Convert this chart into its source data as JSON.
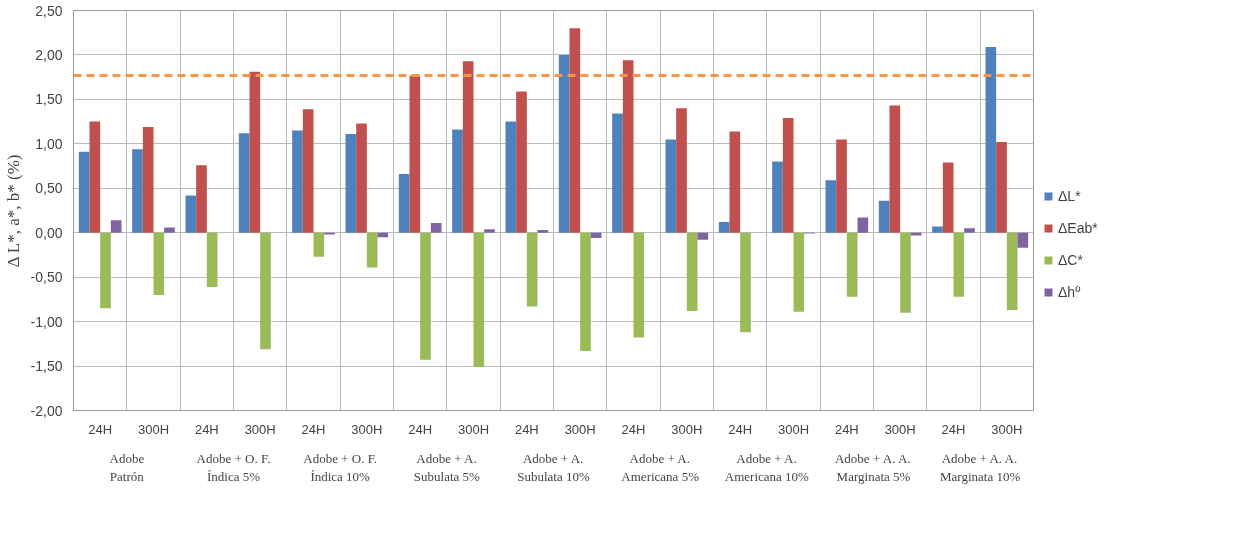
{
  "chart_data": {
    "type": "bar",
    "ylabel": "Δ L*, a*, b* (%)",
    "categories": [
      "24H",
      "300H",
      "24H",
      "300H",
      "24H",
      "300H",
      "24H",
      "300H",
      "24H",
      "300H",
      "24H",
      "300H",
      "24H",
      "300H",
      "24H",
      "300H",
      "24H",
      "300H"
    ],
    "annotations": [
      "Adobe\nPatrón",
      "Adobe + O. F.\nÍndica 5%",
      "Adobe + O. F.\nÍndica 10%",
      "Adobe + A.\nSubulata 5%",
      "Adobe + A.\nSubulata 10%",
      "Adobe + A.\nAmericana 5%",
      "Adobe + A.\nAmericana 10%",
      "Adobe + A. A.\nMarginata 5%",
      "Adobe + A. A.\nMarginata 10%"
    ],
    "series": [
      {
        "name": "ΔL*",
        "color": "#4f81bd",
        "values": [
          0.91,
          0.94,
          0.42,
          1.12,
          1.15,
          1.11,
          0.66,
          1.16,
          1.25,
          2.0,
          1.34,
          1.05,
          0.12,
          0.8,
          0.59,
          0.36,
          0.07,
          2.09
        ]
      },
      {
        "name": "ΔEab*",
        "color": "#c0504d",
        "values": [
          1.25,
          1.19,
          0.76,
          1.81,
          1.39,
          1.23,
          1.77,
          1.93,
          1.59,
          2.3,
          1.94,
          1.4,
          1.14,
          1.29,
          1.05,
          1.43,
          0.79,
          1.02
        ]
      },
      {
        "name": "ΔC*",
        "color": "#9bbb59",
        "values": [
          -0.85,
          -0.7,
          -0.61,
          -1.31,
          -0.27,
          -0.39,
          -1.43,
          -1.51,
          -0.83,
          -1.33,
          -1.18,
          -0.88,
          -1.12,
          -0.89,
          -0.72,
          -0.9,
          -0.72,
          -0.87
        ]
      },
      {
        "name": "Δhº",
        "color": "#8064a2",
        "values": [
          0.14,
          0.06,
          0,
          0,
          -0.02,
          -0.05,
          0.11,
          0.04,
          0.03,
          -0.06,
          0,
          -0.08,
          0,
          -0.01,
          0.17,
          -0.03,
          0.05,
          -0.17
        ]
      }
    ],
    "ylim": [
      -2,
      2.5
    ],
    "yticks": [
      {
        "value": -2,
        "label": "-2,00"
      },
      {
        "value": -1.5,
        "label": "-1,50"
      },
      {
        "value": -1,
        "label": "-1,00"
      },
      {
        "value": -0.5,
        "label": "-0,50"
      },
      {
        "value": 0,
        "label": "0,00"
      },
      {
        "value": 0.5,
        "label": "0,50"
      },
      {
        "value": 1,
        "label": "1,00"
      },
      {
        "value": 1.5,
        "label": "1,50"
      },
      {
        "value": 2,
        "label": "2,00"
      },
      {
        "value": 2.5,
        "label": "2,50"
      }
    ],
    "ref_lines": [
      {
        "axis": "y",
        "value": 1.77,
        "color": "#f79646",
        "line_style": "dashed"
      }
    ],
    "grid": true,
    "legend": "right"
  }
}
